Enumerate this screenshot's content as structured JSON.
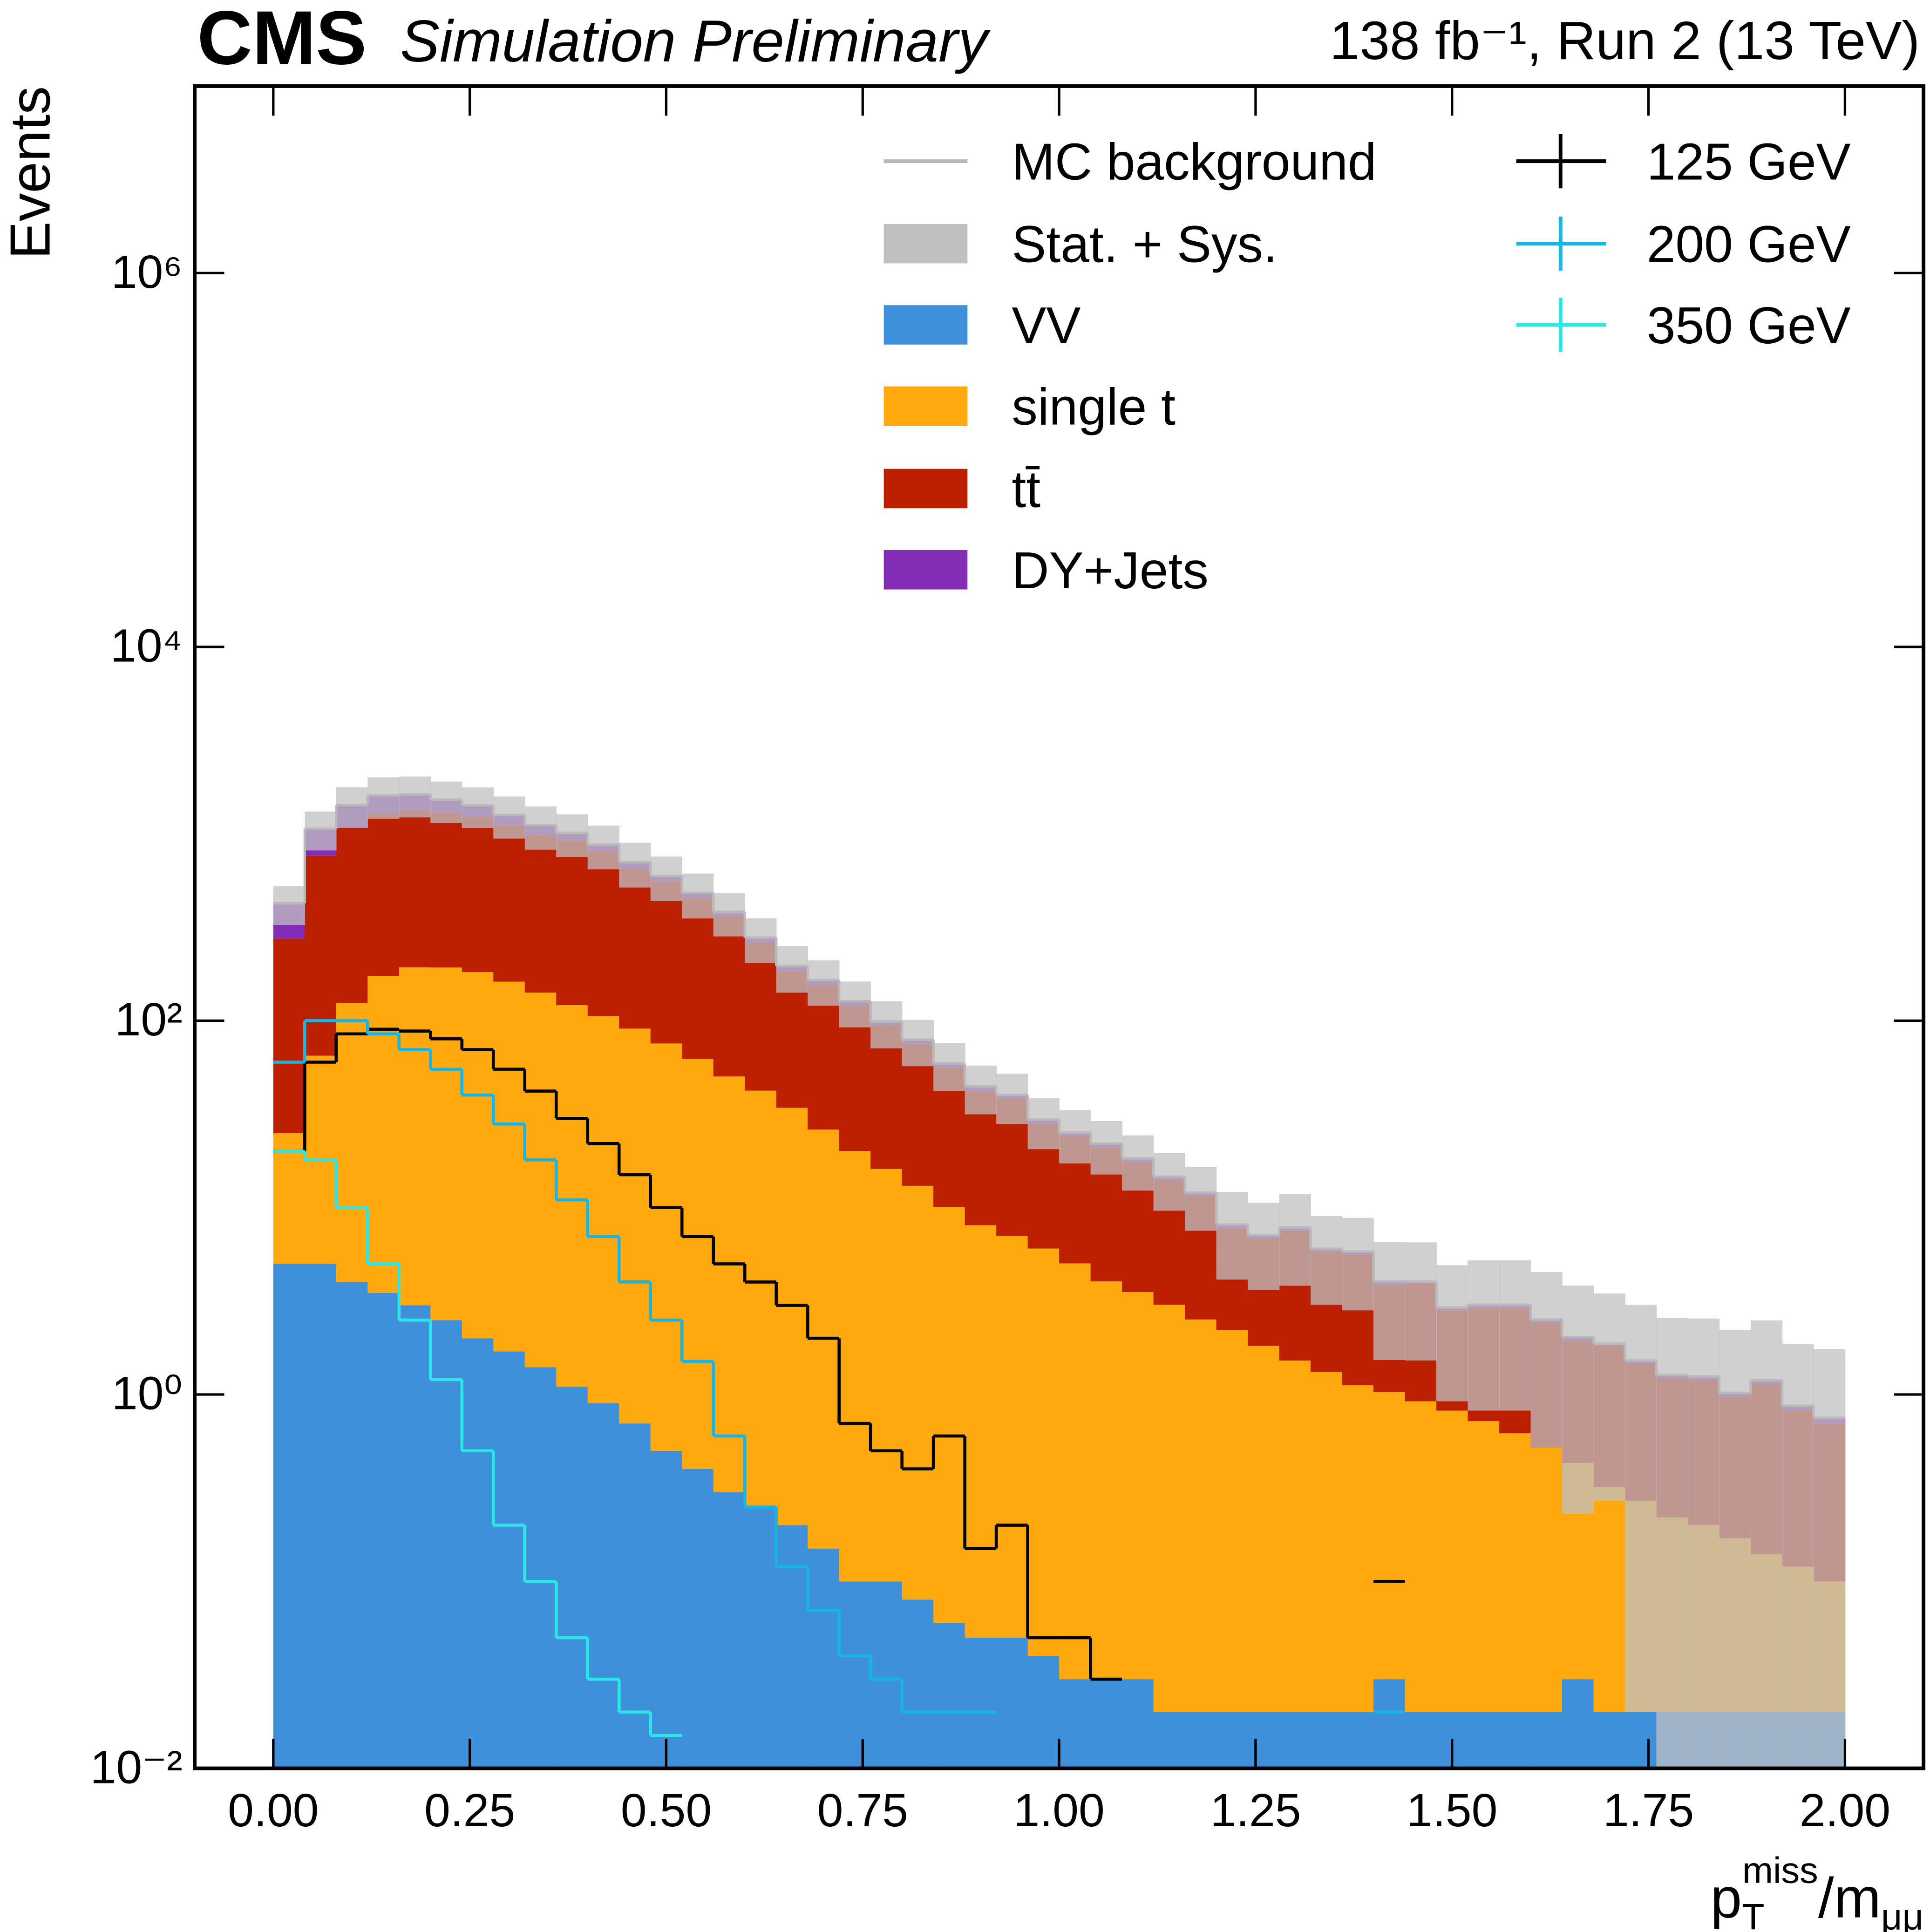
{
  "chart_data": {
    "type": "histogram",
    "experiment": "CMS",
    "subtitle": "Simulation Preliminary",
    "lumi": "138 fb⁻¹, Run 2 (13 TeV)",
    "x_label": {
      "base": "p",
      "sub": "T",
      "sup": "miss",
      "rest": "/m",
      "rest_sub": "μμ"
    },
    "y_label": "Events",
    "log_y": true,
    "xlim": [
      -0.1,
      2.1
    ],
    "ylim": [
      0.01,
      10000000
    ],
    "xticks": [
      {
        "value": 0,
        "label": "0.00"
      },
      {
        "value": 0.25,
        "label": "0.25"
      },
      {
        "value": 0.5,
        "label": "0.50"
      },
      {
        "value": 0.75,
        "label": "0.75"
      },
      {
        "value": 1,
        "label": "1.00"
      },
      {
        "value": 1.25,
        "label": "1.25"
      },
      {
        "value": 1.5,
        "label": "1.50"
      },
      {
        "value": 1.75,
        "label": "1.75"
      },
      {
        "value": 2,
        "label": "2.00"
      }
    ],
    "yticks": [
      {
        "value": 0.01,
        "label": "10⁻²"
      },
      {
        "value": 1,
        "label": "10⁰"
      },
      {
        "value": 100,
        "label": "10²"
      },
      {
        "value": 10000,
        "label": "10⁴"
      },
      {
        "value": 1000000,
        "label": "10⁶"
      }
    ],
    "bins": [
      0,
      0.04,
      0.08,
      0.12,
      0.16,
      0.2,
      0.24,
      0.28,
      0.32,
      0.36,
      0.4,
      0.44,
      0.48,
      0.52,
      0.56,
      0.6,
      0.64,
      0.68,
      0.72,
      0.76,
      0.8,
      0.84,
      0.88,
      0.92,
      0.96,
      1,
      1.04,
      1.08,
      1.12,
      1.16,
      1.2,
      1.24,
      1.28,
      1.32,
      1.36,
      1.4,
      1.44,
      1.48,
      1.52,
      1.56,
      1.6,
      1.64,
      1.68,
      1.72,
      1.76,
      1.8,
      1.84,
      1.88,
      1.92,
      1.96,
      2
    ],
    "series": [
      {
        "name": "VV",
        "color": "#3f90da",
        "values": [
          5,
          5,
          4,
          3.5,
          3,
          2.5,
          2,
          1.7,
          1.4,
          1.1,
          0.9,
          0.7,
          0.5,
          0.4,
          0.3,
          0.25,
          0.2,
          0.15,
          0.1,
          0.1,
          0.08,
          0.06,
          0.05,
          0.05,
          0.04,
          0.03,
          0.03,
          0.03,
          0.02,
          0.02,
          0.02,
          0.02,
          0.02,
          0.02,
          0.02,
          0.03,
          0.02,
          0.02,
          0.02,
          0.02,
          0.02,
          0.03,
          0.02,
          0.02,
          0.02,
          0.02,
          0.02,
          0.02,
          0.02,
          0.02
        ]
      },
      {
        "name": "single t",
        "color": "#ffa90e",
        "values": [
          20,
          60,
          120,
          170,
          190,
          190,
          180,
          160,
          140,
          120,
          105,
          90,
          75,
          62,
          50,
          42,
          34,
          26,
          20,
          16,
          13,
          10,
          8,
          7,
          6,
          5,
          4,
          3.5,
          3,
          2.5,
          2.2,
          1.8,
          1.5,
          1.3,
          1.1,
          1,
          0.9,
          0.8,
          0.7,
          0.6,
          0.5,
          0.4,
          0.3,
          0.25,
          0.2,
          0.18,
          0.15,
          0.12,
          0.1,
          0.08
        ]
      },
      {
        "name": "tt̄",
        "color": "#bd1f01",
        "values": [
          250,
          700,
          950,
          1100,
          1150,
          1100,
          1050,
          950,
          850,
          800,
          700,
          560,
          480,
          390,
          310,
          220,
          150,
          130,
          100,
          78,
          62,
          46,
          34,
          31,
          22,
          19,
          17,
          14,
          11,
          9,
          5.5,
          5,
          6,
          4.5,
          4.5,
          2.8,
          3,
          2,
          2.2,
          2.3,
          1.9,
          1.5,
          1.5,
          1.2,
          1,
          1,
          0.8,
          1,
          0.7,
          0.6
        ]
      },
      {
        "name": "DY+Jets",
        "color": "#832db6",
        "values": [
          150,
          300,
          350,
          330,
          280,
          230,
          190,
          150,
          120,
          90,
          70,
          55,
          40,
          30,
          22,
          16,
          12,
          9,
          7,
          5,
          4,
          3,
          2.5,
          2,
          1.5,
          1.2,
          1,
          0.8,
          0.6,
          0.5,
          0.4,
          0.3,
          0.3,
          0.2,
          0.2,
          0.2,
          0.1,
          0.1,
          0.1,
          0.1,
          0.1,
          0.1,
          0.05,
          0.05,
          0.05,
          0.05,
          0.05,
          0.05,
          0.05,
          0.05
        ]
      }
    ],
    "mc_background": {
      "name": "MC background",
      "color": "#b9b9b9"
    },
    "uncertainty": {
      "name": "Stat. + Sys.",
      "color": "#c0c0c0",
      "values": [
        100,
        250,
        350,
        400,
        400,
        380,
        350,
        320,
        290,
        260,
        230,
        190,
        160,
        130,
        100,
        75,
        55,
        45,
        35,
        28,
        22,
        17,
        13,
        12,
        9,
        8,
        7,
        6,
        5,
        4.5,
        4,
        3.5,
        4,
        3,
        3,
        2.5,
        2.5,
        2,
        2.2,
        2.2,
        2,
        1.8,
        1.6,
        1.5,
        1.3,
        1.3,
        1.2,
        1.3,
        1,
        1
      ]
    },
    "signals": [
      {
        "name": "125 GeV",
        "color": "#000000",
        "values": [
          20,
          60,
          85,
          90,
          88,
          80,
          70,
          55,
          42,
          30,
          22,
          15,
          10,
          7,
          5,
          4,
          3,
          2,
          0.7,
          0.5,
          0.4,
          0.6,
          0.15,
          0.2,
          0.05,
          0.05,
          0.03,
          null,
          null,
          null,
          null,
          null,
          null,
          null,
          null,
          0.1,
          null,
          null,
          null,
          null,
          null,
          null,
          null,
          null,
          null,
          null,
          null,
          null,
          null,
          null
        ]
      },
      {
        "name": "200 GeV",
        "color": "#17b4e6",
        "values": [
          60,
          100,
          100,
          85,
          70,
          55,
          40,
          28,
          18,
          11,
          7,
          4,
          2.5,
          1.5,
          0.6,
          0.25,
          0.12,
          0.07,
          0.04,
          0.03,
          0.02,
          0.02,
          0.02,
          null,
          null,
          null,
          null,
          null,
          null,
          null,
          null,
          null,
          null,
          null,
          null,
          0.02,
          null,
          null,
          null,
          null,
          null,
          null,
          null,
          null,
          null,
          null,
          null,
          null,
          null,
          null
        ]
      },
      {
        "name": "350 GeV",
        "color": "#2ae6e6",
        "values": [
          20,
          18,
          10,
          5,
          2.5,
          1.2,
          0.5,
          0.2,
          0.1,
          0.05,
          0.03,
          0.02,
          0.015,
          null,
          null,
          null,
          null,
          null,
          null,
          null,
          null,
          null,
          null,
          null,
          null,
          null,
          null,
          null,
          null,
          null,
          null,
          null,
          null,
          null,
          null,
          null,
          null,
          null,
          null,
          null,
          null,
          null,
          null,
          null,
          null,
          null,
          null,
          null,
          null,
          null
        ]
      }
    ]
  }
}
